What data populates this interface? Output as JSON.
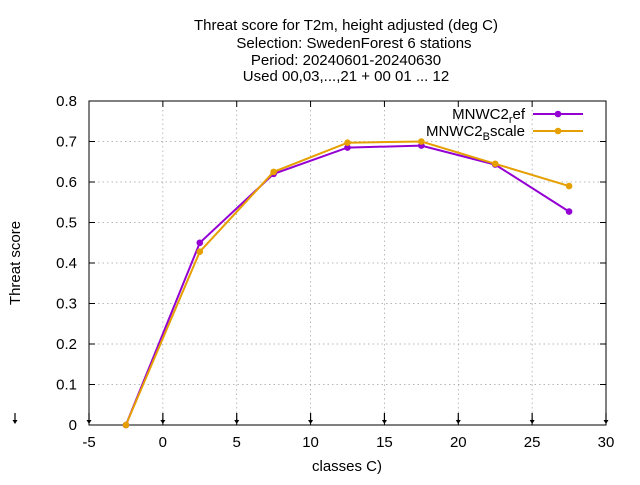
{
  "chart_data": {
    "type": "line",
    "title_lines": [
      "Threat score  for T2m, height adjusted (deg C)",
      "Selection: SwedenForest      6 stations",
      "Period: 20240601-20240630",
      "Used 00,03,...,21 + 00 01 ... 12"
    ],
    "xlabel": "classes C)",
    "ylabel": "Threat score",
    "xlim": [
      -5,
      30
    ],
    "ylim": [
      0,
      0.8
    ],
    "x_ticks": [
      -5,
      0,
      5,
      10,
      15,
      20,
      25,
      30
    ],
    "y_ticks": [
      0,
      0.1,
      0.2,
      0.3,
      0.4,
      0.5,
      0.6,
      0.7,
      0.8
    ],
    "x_tick_labels": [
      "-5",
      "0",
      "5",
      "10",
      "15",
      "20",
      "25",
      "30"
    ],
    "y_tick_labels": [
      "0",
      "0.1",
      "0.2",
      "0.3",
      "0.4",
      "0.5",
      "0.6",
      "0.7",
      "0.8"
    ],
    "grid": true,
    "legend_position": "top-right",
    "series": [
      {
        "name_base": "MNWC2",
        "name_sub": "r",
        "name_tail": "ef",
        "color": "#9400d3",
        "x": [
          -2.5,
          2.5,
          7.5,
          12.5,
          17.5,
          22.5,
          27.5
        ],
        "y": [
          0.0,
          0.45,
          0.62,
          0.685,
          0.69,
          0.643,
          0.527
        ]
      },
      {
        "name_base": "MNWC2",
        "name_sub": "B",
        "name_tail": "scale",
        "color": "#e69f00",
        "x": [
          -2.5,
          2.5,
          7.5,
          12.5,
          17.5,
          22.5,
          27.5
        ],
        "y": [
          0.0,
          0.428,
          0.625,
          0.697,
          0.7,
          0.645,
          0.59
        ]
      }
    ],
    "bottom_markers_x": [
      -5,
      0,
      5,
      10,
      15,
      20,
      25,
      30
    ]
  }
}
